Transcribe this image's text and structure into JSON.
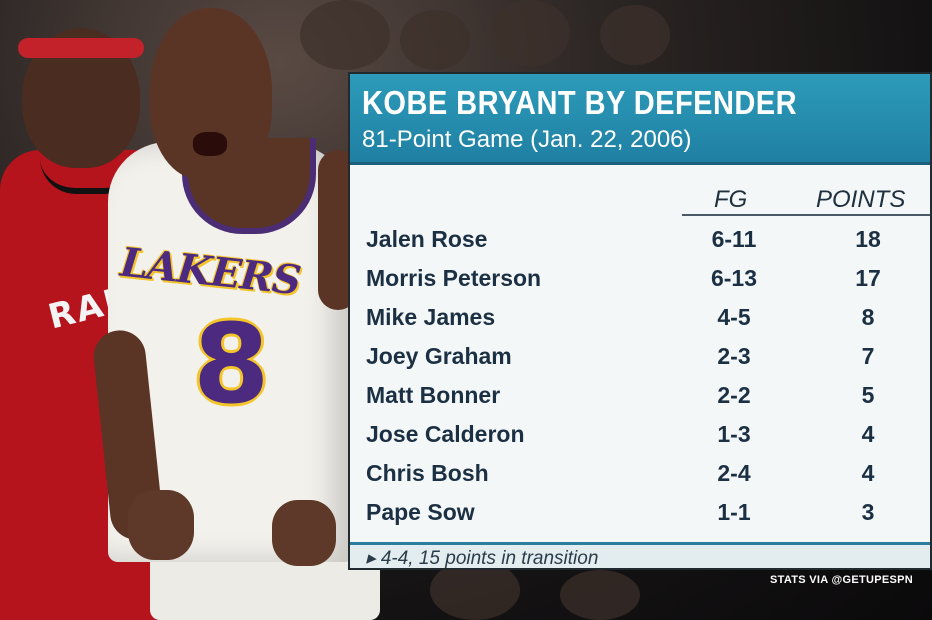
{
  "panel": {
    "title": "KOBE BRYANT BY DEFENDER",
    "subtitle": "81-Point Game (Jan. 22, 2006)",
    "columns": {
      "fg": "FG",
      "points": "POINTS"
    },
    "rows": [
      {
        "name": "Jalen Rose",
        "fg": "6-11",
        "points": "18"
      },
      {
        "name": "Morris Peterson",
        "fg": "6-13",
        "points": "17"
      },
      {
        "name": "Mike James",
        "fg": "4-5",
        "points": "8"
      },
      {
        "name": "Joey Graham",
        "fg": "2-3",
        "points": "7"
      },
      {
        "name": "Matt Bonner",
        "fg": "2-2",
        "points": "5"
      },
      {
        "name": "Jose Calderon",
        "fg": "1-3",
        "points": "4"
      },
      {
        "name": "Chris Bosh",
        "fg": "2-4",
        "points": "4"
      },
      {
        "name": "Pape Sow",
        "fg": "1-1",
        "points": "3"
      }
    ],
    "footer": "▸ 4-4, 15 points in transition"
  },
  "photo": {
    "jersey_left": "RAP",
    "jersey_right_team": "LAKERS",
    "jersey_right_number": "8"
  },
  "credit": "STATS VIA @GETUPESPN",
  "colors": {
    "header_blue": "#1f7fa2",
    "text_navy": "#1c3044",
    "lakers_purple": "#4b2a80",
    "lakers_gold": "#f3c52b",
    "raptors_red": "#b5141d"
  }
}
